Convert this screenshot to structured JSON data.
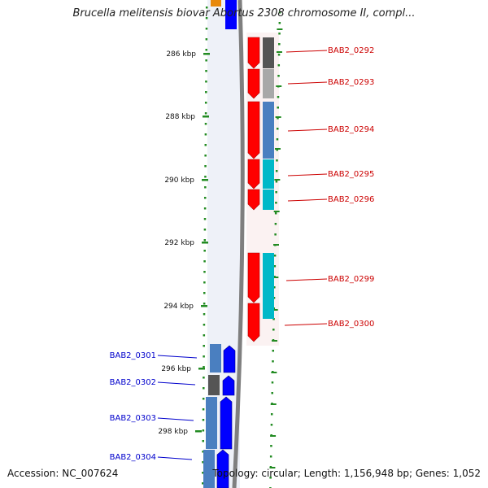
{
  "title": "Brucella melitensis biovar Abortus 2308 chromosome II, compl...",
  "footer": {
    "accession": "Accession: NC_007624",
    "summary": "Topology: circular; Length: 1,156,948 bp; Genes: 1,052"
  },
  "colors": {
    "backbone": "#7f7f7f",
    "tick": "#228b22",
    "forward_gene": "#ff0000",
    "reverse_gene": "#0000ff",
    "forward_label": "#cc0000",
    "reverse_label": "#0000cc"
  },
  "scale_labels": [
    "286 kbp",
    "288 kbp",
    "290 kbp",
    "292 kbp",
    "294 kbp",
    "296 kbp",
    "298 kbp"
  ],
  "gene_labels": {
    "right": [
      "BAB2_0292",
      "BAB2_0293",
      "BAB2_0294",
      "BAB2_0295",
      "BAB2_0296",
      "BAB2_0299",
      "BAB2_0300"
    ],
    "left": [
      "BAB2_0301",
      "BAB2_0302",
      "BAB2_0303",
      "BAB2_0304"
    ]
  }
}
